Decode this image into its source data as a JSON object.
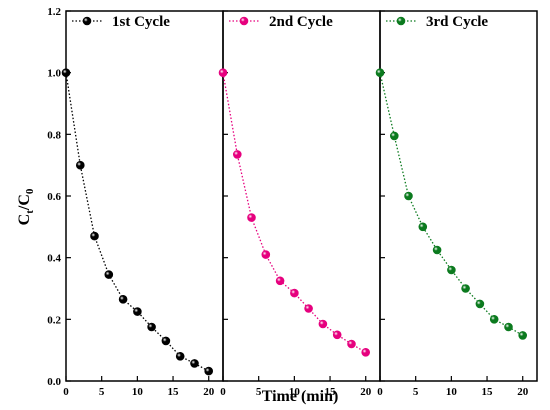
{
  "chart_data": {
    "type": "line",
    "xlabel": "Time (min)",
    "ylabel": {
      "main": "C",
      "sub1": "t",
      "slash": "/C",
      "sub2": "0"
    },
    "ylim": [
      0,
      1.2
    ],
    "xlim": [
      0,
      22
    ],
    "yticks": [
      "0.0",
      "0.2",
      "0.4",
      "0.6",
      "0.8",
      "1.0",
      "1.2"
    ],
    "yticks_values": [
      0,
      0.2,
      0.4,
      0.6,
      0.8,
      1.0,
      1.2
    ],
    "xticks": [
      "0",
      "5",
      "10",
      "15",
      "20"
    ],
    "xticks_values": [
      0,
      5,
      10,
      15,
      20
    ],
    "grid": false,
    "legend_position": "top-left of each panel",
    "panels": [
      {
        "name": "1st Cycle",
        "color": "#000000",
        "x": [
          0,
          2,
          4,
          6,
          8,
          10,
          12,
          14,
          16,
          18,
          20
        ],
        "y": [
          1.0,
          0.7,
          0.47,
          0.345,
          0.265,
          0.225,
          0.175,
          0.13,
          0.08,
          0.057,
          0.032
        ]
      },
      {
        "name": "2nd Cycle",
        "color": "#e6007e",
        "x": [
          0,
          2,
          4,
          6,
          8,
          10,
          12,
          14,
          16,
          18,
          20
        ],
        "y": [
          1.0,
          0.735,
          0.53,
          0.41,
          0.325,
          0.285,
          0.235,
          0.185,
          0.15,
          0.12,
          0.093
        ]
      },
      {
        "name": "3rd Cycle",
        "color": "#0b7a1e",
        "x": [
          0,
          2,
          4,
          6,
          8,
          10,
          12,
          14,
          16,
          18,
          20
        ],
        "y": [
          1.0,
          0.795,
          0.6,
          0.5,
          0.425,
          0.36,
          0.3,
          0.25,
          0.2,
          0.175,
          0.148
        ]
      }
    ]
  }
}
